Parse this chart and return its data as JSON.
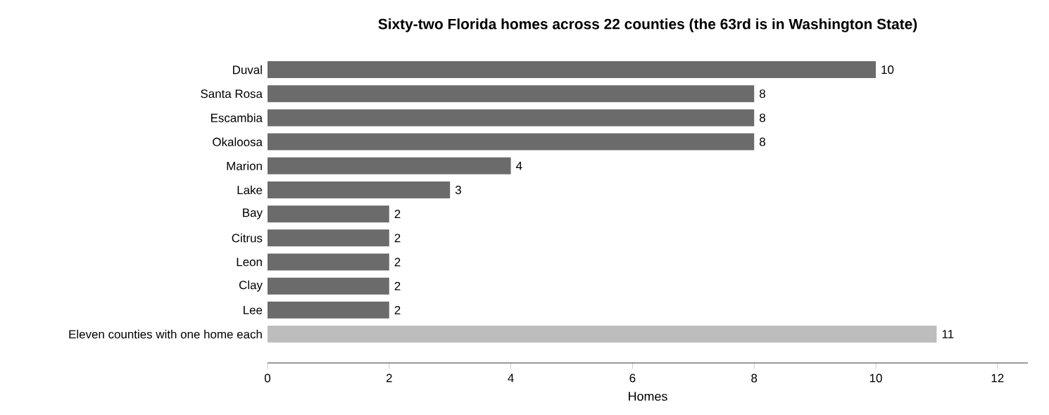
{
  "chart_data": {
    "type": "bar",
    "orientation": "horizontal",
    "title": "Sixty-two Florida homes across 22 counties (the 63rd is in Washington State)",
    "xlabel": "Homes",
    "categories": [
      "Duval",
      "Santa Rosa",
      "Escambia",
      "Okaloosa",
      "Marion",
      "Lake",
      "Bay",
      "Citrus",
      "Leon",
      "Clay",
      "Lee",
      "Eleven counties with one home each"
    ],
    "values": [
      10,
      8,
      8,
      8,
      4,
      3,
      2,
      2,
      2,
      2,
      2,
      11
    ],
    "colors": [
      "#6b6b6b",
      "#6b6b6b",
      "#6b6b6b",
      "#6b6b6b",
      "#6b6b6b",
      "#6b6b6b",
      "#6b6b6b",
      "#6b6b6b",
      "#6b6b6b",
      "#6b6b6b",
      "#6b6b6b",
      "#bdbdbd"
    ],
    "xlim": [
      0,
      12.5
    ],
    "xticks": [
      0,
      2,
      4,
      6,
      8,
      10,
      12
    ],
    "data_labels": true
  }
}
